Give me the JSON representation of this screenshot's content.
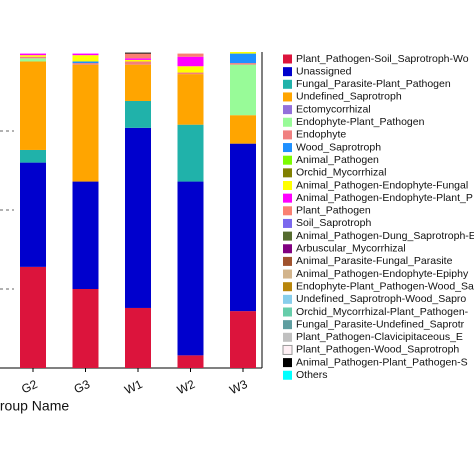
{
  "chart_data": {
    "type": "stacked-bar",
    "x_label": "Group Name",
    "categories": [
      "G2",
      "G3",
      "W1",
      "W2",
      "W3"
    ],
    "ylim": [
      0,
      1
    ],
    "yticks": [
      0.25,
      0.5,
      0.75
    ],
    "grid": true,
    "series": [
      {
        "name": "Plant_Pathogen-Soil_Saprotroph-Wo",
        "color": "#dc143c",
        "values": [
          0.32,
          0.25,
          0.19,
          0.04,
          0.18
        ]
      },
      {
        "name": "Unassigned",
        "color": "#0000cd",
        "values": [
          0.33,
          0.34,
          0.57,
          0.55,
          0.53
        ]
      },
      {
        "name": "Fungal_Parasite-Plant_Pathogen",
        "color": "#20b2aa",
        "values": [
          0.04,
          0,
          0.085,
          0.18,
          0
        ]
      },
      {
        "name": "Undefined_Saprotroph",
        "color": "#ffa500",
        "values": [
          0.28,
          0.37,
          0.115,
          0.16,
          0.09
        ]
      },
      {
        "name": "Ectomycorrhizal",
        "color": "#9370db",
        "values": [
          0,
          0,
          0,
          0,
          0
        ]
      },
      {
        "name": "Endophyte-Plant_Pathogen",
        "color": "#98fb98",
        "values": [
          0.01,
          0,
          0,
          0,
          0.16
        ]
      },
      {
        "name": "Endophyte",
        "color": "#f08080",
        "values": [
          0.005,
          0.005,
          0.01,
          0.005,
          0.005
        ]
      },
      {
        "name": "Wood_Saprotroph",
        "color": "#1e90ff",
        "values": [
          0,
          0.005,
          0,
          0,
          0.03
        ]
      },
      {
        "name": "Animal_Pathogen",
        "color": "#7cfc00",
        "values": [
          0,
          0,
          0,
          0,
          0
        ]
      },
      {
        "name": "Orchid_Mycorrhizal",
        "color": "#808000",
        "values": [
          0,
          0,
          0,
          0,
          0
        ]
      },
      {
        "name": "Animal_Pathogen-Endophyte-Fungal",
        "color": "#ffff00",
        "values": [
          0.005,
          0.02,
          0.005,
          0.02,
          0.005
        ]
      },
      {
        "name": "Animal_Pathogen-Endophyte-Plant_P",
        "color": "#ff00ff",
        "values": [
          0.005,
          0.005,
          0.005,
          0.03,
          0
        ]
      },
      {
        "name": "Plant_Pathogen",
        "color": "#fa8072",
        "values": [
          0,
          0,
          0.015,
          0.01,
          0
        ]
      },
      {
        "name": "Soil_Saprotroph",
        "color": "#7b68ee",
        "values": [
          0,
          0,
          0,
          0,
          0
        ]
      },
      {
        "name": "Animal_Pathogen-Dung_Saprotroph-Ep",
        "color": "#556b2f",
        "values": [
          0,
          0,
          0,
          0,
          0
        ]
      },
      {
        "name": "Arbuscular_Mycorrhizal",
        "color": "#800080",
        "values": [
          0,
          0,
          0,
          0,
          0
        ]
      },
      {
        "name": "Animal_Parasite-Fungal_Parasite",
        "color": "#a0522d",
        "values": [
          0,
          0,
          0,
          0,
          0
        ]
      },
      {
        "name": "Animal_Pathogen-Endophyte-Epiphy",
        "color": "#d2b48c",
        "values": [
          0,
          0,
          0,
          0,
          0
        ]
      },
      {
        "name": "Endophyte-Plant_Pathogen-Wood_Sa",
        "color": "#b8860b",
        "values": [
          0,
          0,
          0,
          0,
          0
        ]
      },
      {
        "name": "Undefined_Saprotroph-Wood_Sapro",
        "color": "#87ceeb",
        "values": [
          0,
          0,
          0,
          0,
          0
        ]
      },
      {
        "name": "Orchid_Mycorrhizal-Plant_Pathogen-",
        "color": "#66cdaa",
        "values": [
          0,
          0,
          0,
          0,
          0
        ]
      },
      {
        "name": "Fungal_Parasite-Undefined_Saprotr",
        "color": "#5f9ea0",
        "values": [
          0,
          0,
          0,
          0,
          0
        ]
      },
      {
        "name": "Plant_Pathogen-Clavicipitaceous_E",
        "color": "#c0c0c0",
        "values": [
          0,
          0,
          0,
          0,
          0
        ]
      },
      {
        "name": "Plant_Pathogen-Wood_Saprotroph",
        "color": "#fff0f5",
        "values": [
          0,
          0,
          0,
          0,
          0
        ]
      },
      {
        "name": "Animal_Pathogen-Plant_Pathogen-S",
        "color": "#000000",
        "values": [
          0,
          0,
          0.003,
          0,
          0
        ]
      },
      {
        "name": "Others",
        "color": "#00ffff",
        "values": [
          0,
          0,
          0,
          0,
          0
        ]
      }
    ]
  }
}
